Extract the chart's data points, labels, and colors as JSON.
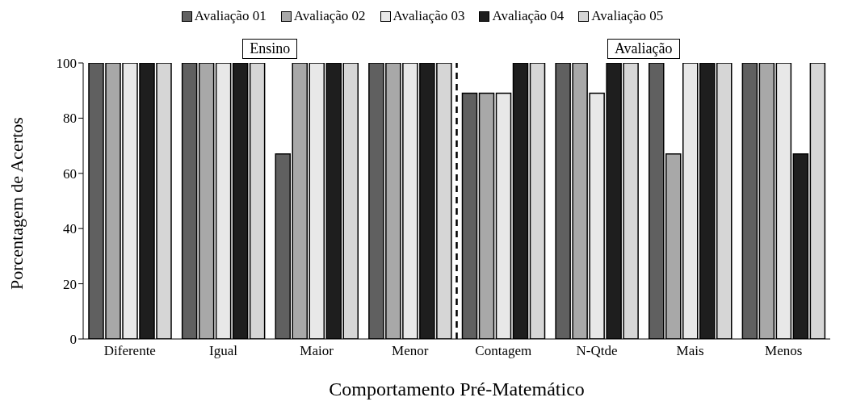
{
  "chart_data": {
    "type": "bar",
    "xlabel": "Comportamento Pré-Matemático",
    "ylabel": "Porcentagem de Acertos",
    "categories": [
      "Diferente",
      "Igual",
      "Maior",
      "Menor",
      "Contagem",
      "N-Qtde",
      "Mais",
      "Menos"
    ],
    "series": [
      {
        "name": "Avaliação 01",
        "color": "#606060",
        "values": [
          100,
          100,
          67,
          100,
          89,
          100,
          100,
          100
        ]
      },
      {
        "name": "Avaliação 02",
        "color": "#a8a8a8",
        "values": [
          100,
          100,
          100,
          100,
          89,
          100,
          67,
          100
        ]
      },
      {
        "name": "Avaliação 03",
        "color": "#e8e8e8",
        "values": [
          100,
          100,
          100,
          100,
          89,
          89,
          100,
          100
        ]
      },
      {
        "name": "Avaliação 04",
        "color": "#1e1e1e",
        "values": [
          100,
          100,
          100,
          100,
          100,
          100,
          100,
          67
        ]
      },
      {
        "name": "Avaliação 05",
        "color": "#d6d6d6",
        "values": [
          100,
          100,
          100,
          100,
          100,
          100,
          100,
          100
        ]
      }
    ],
    "ylim": [
      0,
      100
    ],
    "yticks": [
      0,
      20,
      40,
      60,
      80,
      100
    ],
    "grid": false,
    "legend": "top",
    "annotations": [
      "Ensino",
      "Avaliação"
    ]
  }
}
